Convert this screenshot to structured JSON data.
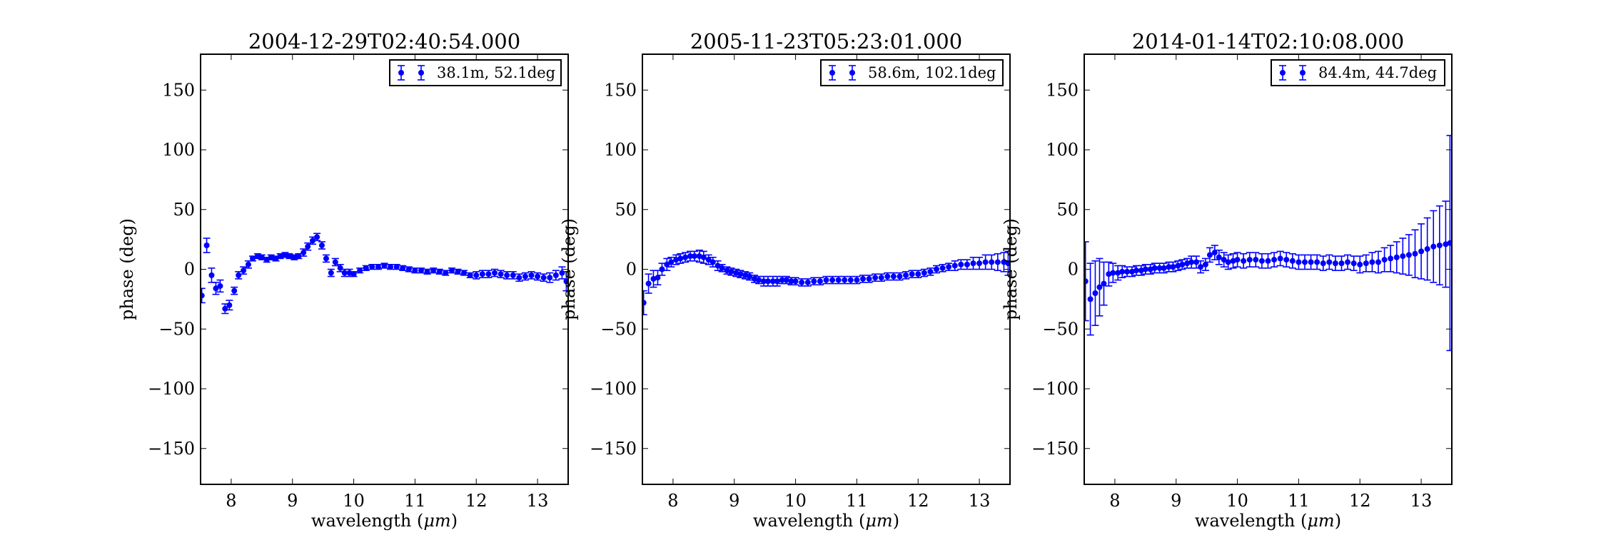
{
  "figure": {
    "series_color": "#0000ff",
    "xlabel_text": "wavelength (",
    "xlabel_unit": "μm",
    "xlabel_close": ")"
  },
  "chart_data": [
    {
      "type": "scatter",
      "title": "2004-12-29T02:40:54.000",
      "xlabel": "wavelength (μm)",
      "ylabel": "phase (deg)",
      "xlim": [
        7.5,
        13.5
      ],
      "ylim": [
        -180,
        180
      ],
      "xticks": [
        8,
        9,
        10,
        11,
        12,
        13
      ],
      "yticks": [
        -150,
        -100,
        -50,
        0,
        50,
        100,
        150
      ],
      "ytick_labels": [
        "−150",
        "−100",
        "−50",
        "0",
        "50",
        "100",
        "150"
      ],
      "grid": false,
      "legend_position": "top-right",
      "series": [
        {
          "name": "38.1m, 52.1deg",
          "x": [
            7.52,
            7.6,
            7.68,
            7.75,
            7.82,
            7.9,
            7.97,
            8.05,
            8.12,
            8.2,
            8.28,
            8.35,
            8.43,
            8.5,
            8.58,
            8.65,
            8.73,
            8.8,
            8.88,
            8.95,
            9.03,
            9.1,
            9.18,
            9.25,
            9.33,
            9.4,
            9.48,
            9.55,
            9.63,
            9.7,
            9.78,
            9.85,
            9.93,
            10.0,
            10.1,
            10.2,
            10.3,
            10.4,
            10.5,
            10.6,
            10.7,
            10.8,
            10.9,
            11.0,
            11.1,
            11.2,
            11.3,
            11.4,
            11.5,
            11.6,
            11.7,
            11.8,
            11.9,
            12.0,
            12.1,
            12.2,
            12.3,
            12.4,
            12.5,
            12.6,
            12.7,
            12.8,
            12.9,
            13.0,
            13.1,
            13.2,
            13.3,
            13.4,
            13.47
          ],
          "y": [
            -22,
            20,
            -5,
            -16,
            -14,
            -33,
            -30,
            -18,
            -5,
            -1,
            4,
            9,
            11,
            10,
            8,
            10,
            9,
            11,
            12,
            11,
            10,
            11,
            14,
            19,
            24,
            27,
            20,
            9,
            -3,
            6,
            1,
            -3,
            -3,
            -4,
            -1,
            1,
            2,
            2,
            3,
            2,
            2,
            1,
            0,
            -1,
            -1,
            -2,
            -1,
            -2,
            -3,
            -1,
            -2,
            -3,
            -5,
            -5,
            -4,
            -4,
            -3,
            -4,
            -5,
            -5,
            -7,
            -6,
            -5,
            -6,
            -7,
            -7,
            -5,
            -3,
            -10
          ],
          "yerr": [
            6,
            6,
            6,
            5,
            5,
            4,
            4,
            3,
            3,
            3,
            3,
            2,
            2,
            2,
            2,
            2,
            2,
            2,
            2,
            2,
            2,
            2,
            3,
            3,
            3,
            3,
            3,
            3,
            3,
            3,
            3,
            3,
            3,
            2,
            2,
            2,
            2,
            2,
            2,
            2,
            2,
            2,
            2,
            2,
            2,
            2,
            2,
            2,
            2,
            2,
            2,
            2,
            2,
            3,
            3,
            3,
            3,
            3,
            3,
            3,
            3,
            3,
            3,
            3,
            3,
            4,
            4,
            5,
            8
          ]
        }
      ]
    },
    {
      "type": "scatter",
      "title": "2005-11-23T05:23:01.000",
      "xlabel": "wavelength (μm)",
      "ylabel": "phase (deg)",
      "xlim": [
        7.5,
        13.5
      ],
      "ylim": [
        -180,
        180
      ],
      "xticks": [
        8,
        9,
        10,
        11,
        12,
        13
      ],
      "yticks": [
        -150,
        -100,
        -50,
        0,
        50,
        100,
        150
      ],
      "ytick_labels": [
        "−150",
        "−100",
        "−50",
        "0",
        "50",
        "100",
        "150"
      ],
      "grid": false,
      "legend_position": "top-right",
      "series": [
        {
          "name": "58.6m, 102.1deg",
          "x": [
            7.52,
            7.6,
            7.68,
            7.75,
            7.82,
            7.9,
            7.97,
            8.05,
            8.12,
            8.2,
            8.28,
            8.35,
            8.43,
            8.5,
            8.58,
            8.65,
            8.73,
            8.8,
            8.88,
            8.95,
            9.03,
            9.1,
            9.18,
            9.25,
            9.33,
            9.4,
            9.48,
            9.55,
            9.63,
            9.7,
            9.78,
            9.85,
            9.93,
            10.0,
            10.1,
            10.2,
            10.3,
            10.4,
            10.5,
            10.6,
            10.7,
            10.8,
            10.9,
            11.0,
            11.1,
            11.2,
            11.3,
            11.4,
            11.5,
            11.6,
            11.7,
            11.8,
            11.9,
            12.0,
            12.1,
            12.2,
            12.3,
            12.4,
            12.5,
            12.6,
            12.7,
            12.8,
            12.9,
            13.0,
            13.1,
            13.2,
            13.3,
            13.4,
            13.47
          ],
          "y": [
            -28,
            -12,
            -8,
            -7,
            0,
            4,
            6,
            8,
            9,
            10,
            11,
            11,
            11,
            10,
            8,
            6,
            3,
            1,
            -1,
            -2,
            -3,
            -4,
            -5,
            -6,
            -8,
            -9,
            -10,
            -10,
            -10,
            -10,
            -9,
            -9,
            -10,
            -10,
            -11,
            -11,
            -10,
            -10,
            -9,
            -9,
            -9,
            -9,
            -9,
            -9,
            -8,
            -8,
            -7,
            -7,
            -6,
            -6,
            -6,
            -5,
            -4,
            -4,
            -3,
            -2,
            0,
            1,
            2,
            3,
            4,
            4,
            5,
            5,
            6,
            6,
            6,
            6,
            5
          ],
          "yerr": [
            10,
            8,
            7,
            6,
            5,
            5,
            4,
            4,
            4,
            4,
            4,
            4,
            5,
            5,
            4,
            4,
            4,
            3,
            3,
            3,
            3,
            3,
            3,
            3,
            3,
            3,
            4,
            4,
            4,
            4,
            3,
            3,
            3,
            3,
            3,
            3,
            3,
            3,
            3,
            3,
            3,
            3,
            3,
            3,
            3,
            3,
            3,
            3,
            3,
            3,
            3,
            3,
            3,
            3,
            3,
            3,
            3,
            3,
            3,
            4,
            4,
            4,
            5,
            5,
            6,
            6,
            7,
            8,
            10
          ]
        }
      ]
    },
    {
      "type": "scatter",
      "title": "2014-01-14T02:10:08.000",
      "xlabel": "wavelength (μm)",
      "ylabel": "phase (deg)",
      "xlim": [
        7.5,
        13.5
      ],
      "ylim": [
        -180,
        180
      ],
      "xticks": [
        8,
        9,
        10,
        11,
        12,
        13
      ],
      "yticks": [
        -150,
        -100,
        -50,
        0,
        50,
        100,
        150
      ],
      "ytick_labels": [
        "−150",
        "−100",
        "−50",
        "0",
        "50",
        "100",
        "150"
      ],
      "grid": false,
      "legend_position": "top-right",
      "series": [
        {
          "name": "84.4m, 44.7deg",
          "x": [
            7.52,
            7.6,
            7.68,
            7.75,
            7.82,
            7.9,
            7.97,
            8.05,
            8.12,
            8.2,
            8.28,
            8.35,
            8.43,
            8.5,
            8.58,
            8.65,
            8.73,
            8.8,
            8.88,
            8.95,
            9.03,
            9.1,
            9.18,
            9.25,
            9.33,
            9.4,
            9.48,
            9.55,
            9.63,
            9.7,
            9.78,
            9.85,
            9.93,
            10.0,
            10.1,
            10.2,
            10.3,
            10.4,
            10.5,
            10.6,
            10.7,
            10.8,
            10.9,
            11.0,
            11.1,
            11.2,
            11.3,
            11.4,
            11.5,
            11.6,
            11.7,
            11.8,
            11.9,
            12.0,
            12.1,
            12.2,
            12.3,
            12.4,
            12.5,
            12.6,
            12.7,
            12.8,
            12.9,
            13.0,
            13.1,
            13.2,
            13.3,
            13.4,
            13.47
          ],
          "y": [
            -10,
            -25,
            -20,
            -15,
            -12,
            -4,
            -3,
            -3,
            -2,
            -2,
            -2,
            -1,
            -1,
            0,
            0,
            1,
            1,
            1,
            2,
            2,
            3,
            4,
            5,
            6,
            6,
            2,
            4,
            12,
            14,
            10,
            8,
            6,
            7,
            8,
            7,
            8,
            8,
            7,
            7,
            8,
            9,
            8,
            7,
            6,
            6,
            6,
            6,
            5,
            6,
            5,
            5,
            6,
            5,
            4,
            5,
            6,
            6,
            8,
            9,
            10,
            11,
            12,
            13,
            15,
            17,
            19,
            20,
            21,
            22
          ],
          "yerr": [
            33,
            30,
            27,
            24,
            18,
            10,
            8,
            6,
            5,
            4,
            4,
            4,
            4,
            4,
            4,
            4,
            4,
            4,
            4,
            4,
            4,
            4,
            4,
            5,
            5,
            5,
            5,
            6,
            6,
            6,
            6,
            6,
            6,
            6,
            6,
            6,
            6,
            6,
            6,
            6,
            6,
            6,
            6,
            6,
            6,
            6,
            6,
            6,
            6,
            6,
            6,
            6,
            6,
            7,
            7,
            8,
            9,
            10,
            11,
            13,
            15,
            17,
            20,
            23,
            26,
            30,
            33,
            36,
            90
          ]
        }
      ]
    }
  ]
}
